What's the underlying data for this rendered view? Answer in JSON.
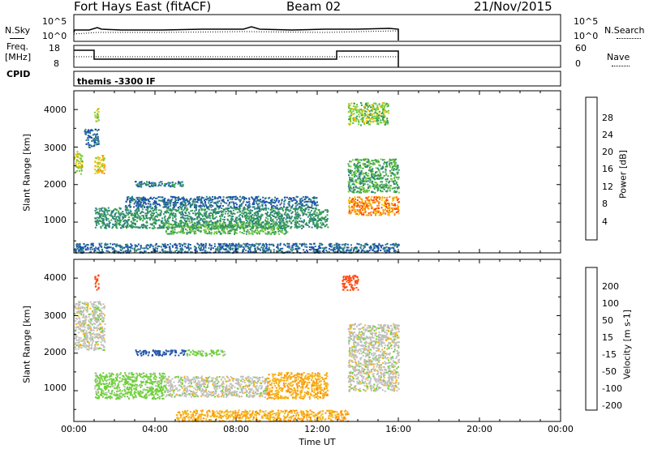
{
  "header": {
    "station": "Fort Hays East (fitACF)",
    "beam": "Beam 02",
    "date": "21/Nov/2015"
  },
  "panels": {
    "nsky_label": "N.Sky",
    "nsearch_label": "N.Search",
    "freq_label_1": "Freq.",
    "freq_label_2": "[MHz]",
    "nave_label": "Nave",
    "cpid_label": "CPID",
    "cpid_text": "themis -3300 IF",
    "noise_ticks_left": [
      "10^5",
      "10^0"
    ],
    "noise_ticks_right": [
      "10^5",
      "10^0"
    ],
    "freq_ticks": [
      "18",
      "8"
    ],
    "nave_ticks": [
      "60",
      "0"
    ]
  },
  "axes": {
    "x_ticks": [
      "00:00",
      "04:00",
      "08:00",
      "12:00",
      "16:00",
      "20:00",
      "00:00"
    ],
    "x_label": "Time UT",
    "y_ticks": [
      "4000",
      "3000",
      "2000",
      "1000"
    ],
    "y_label": "Slant Range [km]"
  },
  "power_scale": {
    "label": "Power [dB]",
    "ticks": [
      "28",
      "24",
      "20",
      "16",
      "12",
      "8",
      "4"
    ],
    "colors": [
      "#0000ff",
      "#1a4fb0",
      "#2e7f7f",
      "#36a050",
      "#7acc3a",
      "#f0c000",
      "#ff8a00",
      "#ff4000",
      "#e00000"
    ]
  },
  "velocity_scale": {
    "label": "Velocity [m s-1]",
    "ticks": [
      "200",
      "100",
      "50",
      "15",
      "-15",
      "-50",
      "-100",
      "-200"
    ],
    "colors": [
      "#1e1ed2",
      "#2255aa",
      "#2f8a5a",
      "#6fcf3a",
      "#c0c0c0",
      "#f6b41a",
      "#ff8c00",
      "#ff4a10",
      "#e60000"
    ]
  },
  "chart_data": [
    {
      "type": "heatmap",
      "title": "Power",
      "xlabel": "Time UT",
      "ylabel": "Slant Range [km]",
      "xlim": [
        "00:00",
        "24:00"
      ],
      "ylim": [
        180,
        4500
      ],
      "colorbar": "Power [dB]",
      "regions": [
        {
          "t_start": 0.0,
          "t_end": 0.4,
          "r_min": 2300,
          "r_max": 2900,
          "value_db": 19
        },
        {
          "t_start": 0.5,
          "t_end": 1.2,
          "r_min": 3000,
          "r_max": 3500,
          "value_db": 8
        },
        {
          "t_start": 1.0,
          "t_end": 1.5,
          "r_min": 2300,
          "r_max": 2800,
          "value_db": 22
        },
        {
          "t_start": 1.0,
          "t_end": 1.2,
          "r_min": 3700,
          "r_max": 4050,
          "value_db": 18
        },
        {
          "t_start": 3.0,
          "t_end": 5.5,
          "r_min": 1950,
          "r_max": 2100,
          "value_db": 10
        },
        {
          "t_start": 1.0,
          "t_end": 12.5,
          "r_min": 850,
          "r_max": 1400,
          "value_db": 12
        },
        {
          "t_start": 2.5,
          "t_end": 12.0,
          "r_min": 1400,
          "r_max": 1700,
          "value_db": 8
        },
        {
          "t_start": 4.5,
          "t_end": 10.5,
          "r_min": 700,
          "r_max": 1000,
          "value_db": 15
        },
        {
          "t_start": 13.5,
          "t_end": 16.0,
          "r_min": 1200,
          "r_max": 1700,
          "value_db": 26
        },
        {
          "t_start": 13.5,
          "t_end": 16.0,
          "r_min": 1800,
          "r_max": 2700,
          "value_db": 14
        },
        {
          "t_start": 13.5,
          "t_end": 15.5,
          "r_min": 3600,
          "r_max": 4200,
          "value_db": 18
        },
        {
          "t_start": 0.0,
          "t_end": 16.0,
          "r_min": 200,
          "r_max": 450,
          "value_db": 8
        }
      ]
    },
    {
      "type": "heatmap",
      "title": "Velocity",
      "xlabel": "Time UT",
      "ylabel": "Slant Range [km]",
      "xlim": [
        "00:00",
        "24:00"
      ],
      "ylim": [
        180,
        4500
      ],
      "colorbar": "Velocity [m s-1]",
      "regions": [
        {
          "t_start": 0.0,
          "t_end": 1.5,
          "r_min": 2100,
          "r_max": 3400,
          "value_ms": 0
        },
        {
          "t_start": 1.0,
          "t_end": 1.2,
          "r_min": 3700,
          "r_max": 4100,
          "value_ms": -150
        },
        {
          "t_start": 3.0,
          "t_end": 5.5,
          "r_min": 1950,
          "r_max": 2100,
          "value_ms": 180
        },
        {
          "t_start": 5.5,
          "t_end": 7.5,
          "r_min": 1950,
          "r_max": 2100,
          "value_ms": 30
        },
        {
          "t_start": 1.0,
          "t_end": 4.5,
          "r_min": 800,
          "r_max": 1500,
          "value_ms": 30
        },
        {
          "t_start": 4.5,
          "t_end": 9.5,
          "r_min": 850,
          "r_max": 1400,
          "value_ms": 0
        },
        {
          "t_start": 9.5,
          "t_end": 12.5,
          "r_min": 800,
          "r_max": 1500,
          "value_ms": -40
        },
        {
          "t_start": 13.5,
          "t_end": 16.0,
          "r_min": 1000,
          "r_max": 2800,
          "value_ms": 0
        },
        {
          "t_start": 13.2,
          "t_end": 14.0,
          "r_min": 3700,
          "r_max": 4100,
          "value_ms": -150
        },
        {
          "t_start": 5.0,
          "t_end": 13.5,
          "r_min": 200,
          "r_max": 500,
          "value_ms": -40
        }
      ]
    }
  ]
}
